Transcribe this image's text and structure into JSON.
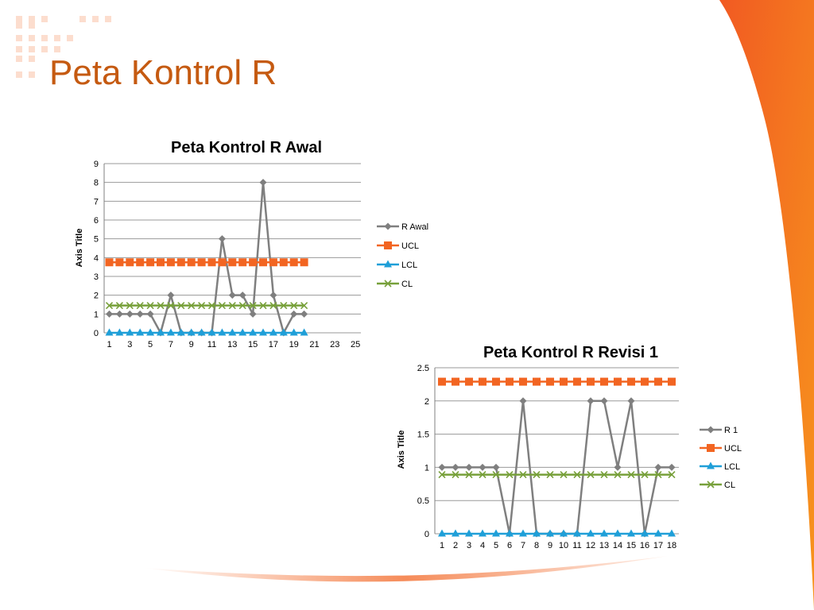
{
  "slide": {
    "title": "Peta Kontrol R"
  },
  "colors": {
    "accent": "#c55a11",
    "orange": "#f26522",
    "gray": "#7f7f7f",
    "blue": "#1f9fd8",
    "green": "#77a03a"
  },
  "chart_data": [
    {
      "type": "line",
      "title": "Peta Kontrol R Awal",
      "ylabel": "Axis Title",
      "xlabel": "",
      "ylim": [
        0,
        9
      ],
      "yticks": [
        0,
        1,
        2,
        3,
        4,
        5,
        6,
        7,
        8,
        9
      ],
      "xlim": [
        1,
        25
      ],
      "xticks": [
        1,
        3,
        5,
        7,
        9,
        11,
        13,
        15,
        17,
        19,
        21,
        23,
        25
      ],
      "grid": true,
      "legend": "right",
      "x": [
        1,
        2,
        3,
        4,
        5,
        6,
        7,
        8,
        9,
        10,
        11,
        12,
        13,
        14,
        15,
        16,
        17,
        18,
        19,
        20
      ],
      "series": [
        {
          "name": "R Awal",
          "color": "#7f7f7f",
          "marker": "diamond",
          "values": [
            1,
            1,
            1,
            1,
            1,
            0,
            2,
            0,
            0,
            0,
            0,
            5,
            2,
            2,
            1,
            8,
            2,
            0,
            1,
            1
          ]
        },
        {
          "name": "UCL",
          "color": "#f26522",
          "marker": "square",
          "values": [
            3.75,
            3.75,
            3.75,
            3.75,
            3.75,
            3.75,
            3.75,
            3.75,
            3.75,
            3.75,
            3.75,
            3.75,
            3.75,
            3.75,
            3.75,
            3.75,
            3.75,
            3.75,
            3.75,
            3.75
          ]
        },
        {
          "name": "LCL",
          "color": "#1f9fd8",
          "marker": "triangle",
          "values": [
            0,
            0,
            0,
            0,
            0,
            0,
            0,
            0,
            0,
            0,
            0,
            0,
            0,
            0,
            0,
            0,
            0,
            0,
            0,
            0
          ]
        },
        {
          "name": "CL",
          "color": "#77a03a",
          "marker": "x",
          "values": [
            1.45,
            1.45,
            1.45,
            1.45,
            1.45,
            1.45,
            1.45,
            1.45,
            1.45,
            1.45,
            1.45,
            1.45,
            1.45,
            1.45,
            1.45,
            1.45,
            1.45,
            1.45,
            1.45,
            1.45
          ]
        }
      ]
    },
    {
      "type": "line",
      "title": "Peta Kontrol R Revisi 1",
      "ylabel": "Axis Title",
      "xlabel": "",
      "ylim": [
        0,
        2.5
      ],
      "yticks": [
        "0",
        "0.5",
        "1",
        "1.5",
        "2",
        "2.5"
      ],
      "xlim": [
        1,
        18
      ],
      "xticks": [
        1,
        2,
        3,
        4,
        5,
        6,
        7,
        8,
        9,
        10,
        11,
        12,
        13,
        14,
        15,
        16,
        17,
        18
      ],
      "grid": true,
      "legend": "right",
      "x": [
        1,
        2,
        3,
        4,
        5,
        6,
        7,
        8,
        9,
        10,
        11,
        12,
        13,
        14,
        15,
        16,
        17,
        18
      ],
      "series": [
        {
          "name": "R 1",
          "color": "#7f7f7f",
          "marker": "diamond",
          "values": [
            1,
            1,
            1,
            1,
            1,
            0,
            2,
            0,
            0,
            0,
            0,
            2,
            2,
            1,
            2,
            0,
            1,
            1
          ]
        },
        {
          "name": "UCL",
          "color": "#f26522",
          "marker": "square",
          "values": [
            2.29,
            2.29,
            2.29,
            2.29,
            2.29,
            2.29,
            2.29,
            2.29,
            2.29,
            2.29,
            2.29,
            2.29,
            2.29,
            2.29,
            2.29,
            2.29,
            2.29,
            2.29
          ]
        },
        {
          "name": "LCL",
          "color": "#1f9fd8",
          "marker": "triangle",
          "values": [
            0,
            0,
            0,
            0,
            0,
            0,
            0,
            0,
            0,
            0,
            0,
            0,
            0,
            0,
            0,
            0,
            0,
            0
          ]
        },
        {
          "name": "CL",
          "color": "#77a03a",
          "marker": "x",
          "values": [
            0.89,
            0.89,
            0.89,
            0.89,
            0.89,
            0.89,
            0.89,
            0.89,
            0.89,
            0.89,
            0.89,
            0.89,
            0.89,
            0.89,
            0.89,
            0.89,
            0.89,
            0.89
          ]
        }
      ]
    }
  ]
}
